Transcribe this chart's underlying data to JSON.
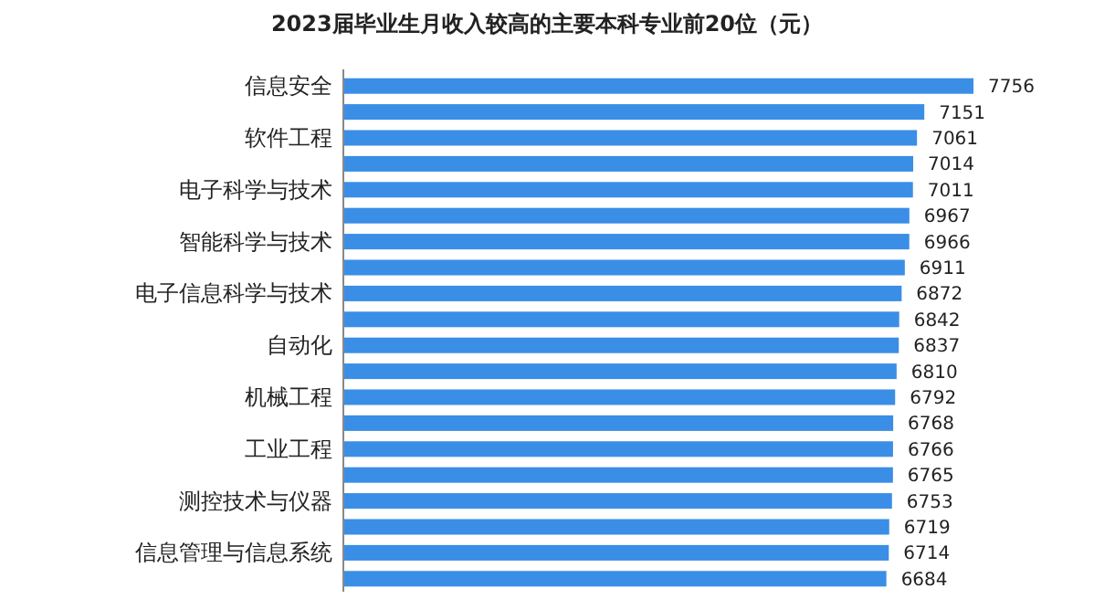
{
  "chart_data": {
    "type": "bar",
    "orientation": "horizontal",
    "title": "2023届毕业生月收入较高的主要本科专业前20位（元）",
    "categories": [
      "信息安全",
      null,
      "软件工程",
      null,
      "电子科学与技术",
      null,
      "智能科学与技术",
      null,
      "电子信息科学与技术",
      null,
      "自动化",
      null,
      "机械工程",
      null,
      "工业工程",
      null,
      "测控技术与仪器",
      null,
      "信息管理与信息系统",
      null
    ],
    "values": [
      7756,
      7151,
      7061,
      7014,
      7011,
      6967,
      6966,
      6911,
      6872,
      6842,
      6837,
      6810,
      6792,
      6768,
      6766,
      6765,
      6753,
      6719,
      6714,
      6684
    ],
    "color": "#3a8ee6",
    "data_labels": true
  }
}
